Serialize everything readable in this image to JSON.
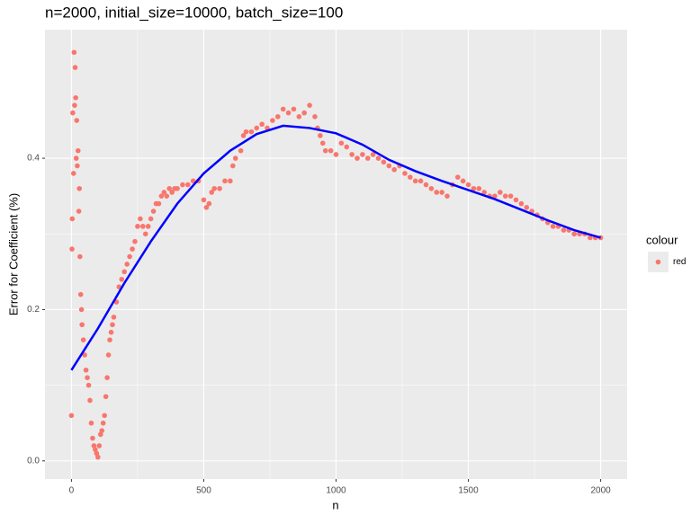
{
  "chart_data": {
    "type": "scatter",
    "title": "n=2000, initial_size=10000, batch_size=100",
    "x_label": "n",
    "y_label": "Error for Coefficient (%)",
    "legend_title": "colour",
    "legend_position": "right",
    "xlim": [
      -100,
      2100
    ],
    "xticks": [
      0,
      500,
      1000,
      1500,
      2000
    ],
    "ylim": [
      -0.024,
      0.57
    ],
    "yticks": [
      {
        "value": 0,
        "label": "0.0"
      },
      0.2,
      0.4
    ],
    "grid": true,
    "series": [
      {
        "name": "red",
        "color": "#f8766d",
        "x": [
          0,
          2,
          3,
          5,
          8,
          10,
          12,
          14,
          16,
          18,
          20,
          22,
          25,
          28,
          30,
          32,
          35,
          38,
          40,
          45,
          50,
          55,
          60,
          65,
          70,
          75,
          80,
          85,
          90,
          95,
          100,
          105,
          110,
          115,
          120,
          125,
          130,
          135,
          140,
          145,
          150,
          155,
          160,
          170,
          180,
          190,
          200,
          210,
          220,
          230,
          240,
          250,
          260,
          270,
          280,
          290,
          300,
          310,
          320,
          330,
          340,
          350,
          360,
          370,
          380,
          390,
          400,
          420,
          440,
          460,
          480,
          500,
          510,
          520,
          530,
          540,
          560,
          580,
          600,
          610,
          620,
          640,
          650,
          660,
          680,
          700,
          720,
          740,
          760,
          780,
          800,
          820,
          840,
          860,
          880,
          900,
          920,
          930,
          940,
          950,
          960,
          980,
          1000,
          1020,
          1040,
          1060,
          1080,
          1100,
          1120,
          1140,
          1160,
          1180,
          1200,
          1220,
          1240,
          1260,
          1280,
          1300,
          1320,
          1340,
          1360,
          1380,
          1400,
          1420,
          1440,
          1460,
          1480,
          1500,
          1520,
          1540,
          1560,
          1580,
          1600,
          1620,
          1640,
          1660,
          1680,
          1700,
          1720,
          1740,
          1760,
          1780,
          1800,
          1820,
          1840,
          1860,
          1880,
          1900,
          1920,
          1940,
          1960,
          1980,
          2000
        ],
        "values": [
          0.06,
          0.28,
          0.32,
          0.46,
          0.38,
          0.54,
          0.47,
          0.52,
          0.48,
          0.4,
          0.45,
          0.39,
          0.41,
          0.33,
          0.36,
          0.27,
          0.22,
          0.2,
          0.18,
          0.16,
          0.14,
          0.12,
          0.11,
          0.1,
          0.08,
          0.05,
          0.03,
          0.02,
          0.015,
          0.01,
          0.005,
          0.02,
          0.035,
          0.04,
          0.05,
          0.06,
          0.085,
          0.11,
          0.14,
          0.16,
          0.17,
          0.18,
          0.19,
          0.21,
          0.23,
          0.24,
          0.25,
          0.26,
          0.27,
          0.28,
          0.29,
          0.31,
          0.32,
          0.31,
          0.3,
          0.31,
          0.32,
          0.33,
          0.34,
          0.34,
          0.35,
          0.355,
          0.35,
          0.36,
          0.355,
          0.36,
          0.36,
          0.365,
          0.365,
          0.37,
          0.37,
          0.345,
          0.335,
          0.34,
          0.355,
          0.36,
          0.36,
          0.37,
          0.37,
          0.39,
          0.4,
          0.41,
          0.43,
          0.435,
          0.435,
          0.44,
          0.445,
          0.44,
          0.45,
          0.455,
          0.465,
          0.46,
          0.465,
          0.455,
          0.46,
          0.47,
          0.455,
          0.44,
          0.43,
          0.42,
          0.41,
          0.41,
          0.405,
          0.42,
          0.415,
          0.405,
          0.4,
          0.405,
          0.4,
          0.405,
          0.4,
          0.395,
          0.39,
          0.385,
          0.39,
          0.38,
          0.375,
          0.37,
          0.37,
          0.365,
          0.36,
          0.355,
          0.355,
          0.35,
          0.365,
          0.375,
          0.37,
          0.365,
          0.36,
          0.36,
          0.355,
          0.35,
          0.35,
          0.355,
          0.35,
          0.35,
          0.345,
          0.34,
          0.335,
          0.33,
          0.325,
          0.32,
          0.315,
          0.31,
          0.31,
          0.305,
          0.305,
          0.3,
          0.3,
          0.3,
          0.295,
          0.295,
          0.295
        ]
      }
    ],
    "smooth": {
      "color": "#0000ff",
      "x": [
        0,
        100,
        200,
        300,
        400,
        500,
        600,
        700,
        800,
        900,
        1000,
        1100,
        1200,
        1300,
        1400,
        1500,
        1600,
        1700,
        1800,
        1900,
        2000
      ],
      "values": [
        0.12,
        0.175,
        0.235,
        0.29,
        0.34,
        0.38,
        0.41,
        0.432,
        0.443,
        0.44,
        0.433,
        0.418,
        0.398,
        0.383,
        0.37,
        0.358,
        0.346,
        0.332,
        0.318,
        0.305,
        0.295
      ]
    }
  }
}
